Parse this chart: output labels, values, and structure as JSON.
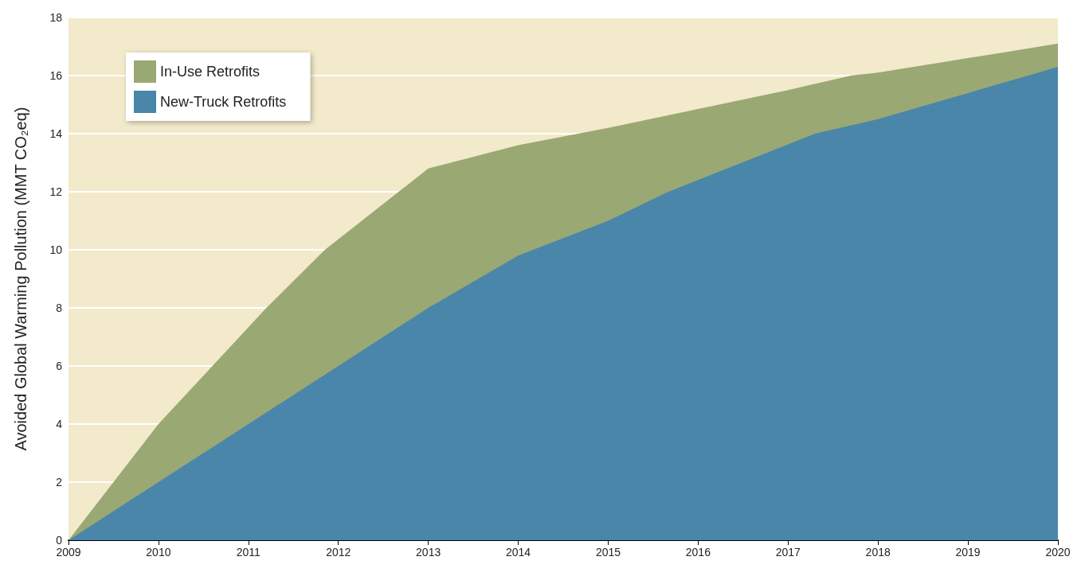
{
  "chart_data": {
    "type": "area",
    "ylabel": "Avoided Global Warming Pollution (MMT CO₂eq)",
    "xlim": [
      2009,
      2020
    ],
    "xticks": [
      2009,
      2010,
      2011,
      2012,
      2013,
      2014,
      2015,
      2016,
      2017,
      2018,
      2019,
      2020
    ],
    "ylim": [
      0,
      18
    ],
    "yticks": [
      0,
      2,
      4,
      6,
      8,
      10,
      12,
      14,
      16,
      18
    ],
    "grid": "y",
    "legend": "top left",
    "marker": "none",
    "bands": [
      {
        "axis": "y",
        "from": 0,
        "to": 18,
        "color": "#f2eacb"
      }
    ],
    "series": [
      {
        "name": "In-Use Retrofits",
        "color": "#9aa874",
        "x": [
          2009,
          2009.5,
          2010,
          2010.6,
          2011.2,
          2011.85,
          2013,
          2014,
          2015,
          2016,
          2017,
          2017.7,
          2018,
          2019,
          2020
        ],
        "values": [
          0,
          2,
          4,
          6,
          8,
          10,
          12.8,
          13.6,
          14.2,
          14.85,
          15.5,
          16,
          16.1,
          16.6,
          17.1
        ]
      },
      {
        "name": "New-Truck Retrofits",
        "color": "#4a86a9",
        "x": [
          2009,
          2010,
          2011,
          2012,
          2013,
          2014,
          2015,
          2015.67,
          2017.3,
          2018,
          2019,
          2020
        ],
        "values": [
          0,
          2,
          4,
          6,
          8,
          9.8,
          11,
          12,
          14,
          14.5,
          15.4,
          16.3
        ]
      }
    ]
  }
}
